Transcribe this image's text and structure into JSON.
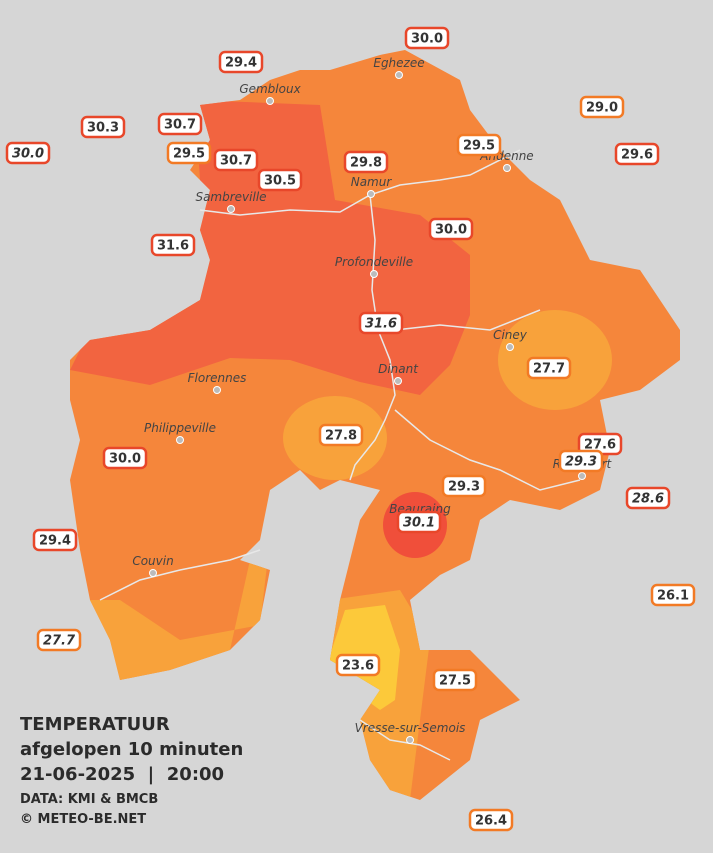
{
  "stations": [
    {
      "value": "30.0"
    },
    {
      "value": "29.4"
    },
    {
      "value": "29.0"
    },
    {
      "value": "30.3"
    },
    {
      "value": "30.7"
    },
    {
      "value": "30.0"
    },
    {
      "value": "29.5"
    },
    {
      "value": "30.7"
    },
    {
      "value": "30.5"
    },
    {
      "value": "29.8"
    },
    {
      "value": "29.5"
    },
    {
      "value": "29.6"
    },
    {
      "value": "31.6"
    },
    {
      "value": "30.0"
    },
    {
      "value": "31.6"
    },
    {
      "value": "27.7"
    },
    {
      "value": "27.8"
    },
    {
      "value": "27.6"
    },
    {
      "value": "29.3"
    },
    {
      "value": "30.0"
    },
    {
      "value": "29.3"
    },
    {
      "value": "28.6"
    },
    {
      "value": "30.1"
    },
    {
      "value": "29.4"
    },
    {
      "value": "26.1"
    },
    {
      "value": "27.7"
    },
    {
      "value": "23.6"
    },
    {
      "value": "27.5"
    },
    {
      "value": "26.4"
    }
  ],
  "towns": [
    {
      "name": "Eghezee"
    },
    {
      "name": "Gembloux"
    },
    {
      "name": "Andenne"
    },
    {
      "name": "Namur"
    },
    {
      "name": "Sambreville"
    },
    {
      "name": "Profondeville"
    },
    {
      "name": "Ciney"
    },
    {
      "name": "Dinant"
    },
    {
      "name": "Florennes"
    },
    {
      "name": "Philippeville"
    },
    {
      "name": "Rochefort"
    },
    {
      "name": "Beauraing"
    },
    {
      "name": "Couvin"
    },
    {
      "name": "Vresse-sur-Semois"
    }
  ],
  "legend": {
    "title": "TEMPERATUUR",
    "period": "afgelopen 10 minuten",
    "datetime": "21-06-2025  |  20:00",
    "source": "DATA: KMI & BMCB",
    "copyright": "© METEO-BE.NET"
  }
}
